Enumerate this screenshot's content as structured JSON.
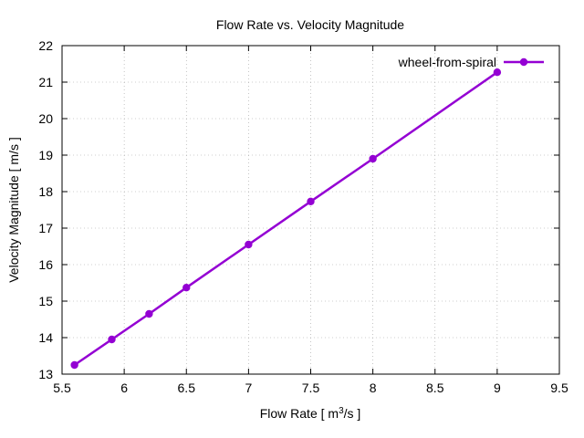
{
  "chart_data": {
    "type": "line",
    "title": "Flow Rate vs. Velocity Magnitude",
    "xlabel_parts": {
      "prefix": "Flow Rate [ m",
      "sup": "3",
      "suffix": "/s ]"
    },
    "ylabel": "Velocity Magnitude [ m/s ]",
    "xlim": [
      5.5,
      9.5
    ],
    "ylim": [
      13,
      22
    ],
    "xticks": [
      "5.5",
      "6",
      "6.5",
      "7",
      "7.5",
      "8",
      "8.5",
      "9",
      "9.5"
    ],
    "yticks": [
      "13",
      "14",
      "15",
      "16",
      "17",
      "18",
      "19",
      "20",
      "21",
      "22"
    ],
    "grid": true,
    "legend_position": "top-right",
    "series": [
      {
        "name": "wheel-from-spiral",
        "color": "#9400d3",
        "x": [
          5.6,
          5.9,
          6.2,
          6.5,
          7.0,
          7.5,
          8.0,
          9.0
        ],
        "y": [
          13.25,
          13.95,
          14.65,
          15.37,
          16.55,
          17.73,
          18.9,
          21.27
        ]
      }
    ]
  }
}
